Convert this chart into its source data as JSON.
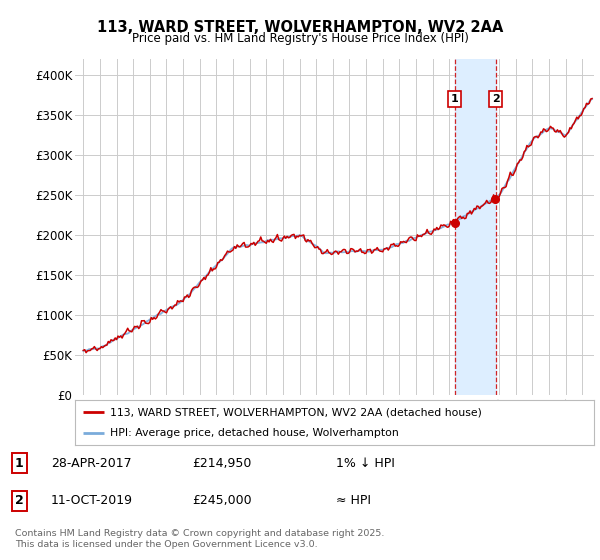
{
  "title": "113, WARD STREET, WOLVERHAMPTON, WV2 2AA",
  "subtitle": "Price paid vs. HM Land Registry's House Price Index (HPI)",
  "background_color": "#ffffff",
  "plot_bg_color": "#ffffff",
  "grid_color": "#cccccc",
  "line_color_red": "#cc0000",
  "line_color_blue": "#7aabdb",
  "highlight_color": "#ddeeff",
  "legend1": "113, WARD STREET, WOLVERHAMPTON, WV2 2AA (detached house)",
  "legend2": "HPI: Average price, detached house, Wolverhampton",
  "footer": "Contains HM Land Registry data © Crown copyright and database right 2025.\nThis data is licensed under the Open Government Licence v3.0.",
  "ylim": [
    0,
    420000
  ],
  "yticks": [
    0,
    50000,
    100000,
    150000,
    200000,
    250000,
    300000,
    350000,
    400000
  ],
  "ytick_labels": [
    "£0",
    "£50K",
    "£100K",
    "£150K",
    "£200K",
    "£250K",
    "£300K",
    "£350K",
    "£400K"
  ],
  "sale1_year": 2017.32,
  "sale2_year": 2019.78,
  "sale1_price": 214950,
  "sale2_price": 245000,
  "sale1_date": "28-APR-2017",
  "sale2_date": "11-OCT-2019",
  "sale1_hpi_text": "1% ↓ HPI",
  "sale2_hpi_text": "≈ HPI"
}
